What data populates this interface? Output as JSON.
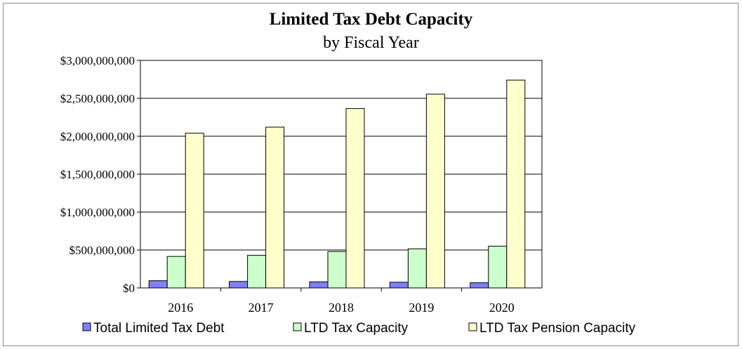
{
  "chart_data": {
    "type": "bar",
    "title": "Limited Tax Debt Capacity",
    "subtitle": "by Fiscal Year",
    "xlabel": "",
    "ylabel": "",
    "categories": [
      "2016",
      "2017",
      "2018",
      "2019",
      "2020"
    ],
    "ylim": [
      0,
      3000000000
    ],
    "yticks": [
      0,
      500000000,
      1000000000,
      1500000000,
      2000000000,
      2500000000,
      3000000000
    ],
    "ytick_labels": [
      "$0",
      "$500,000,000",
      "$1,000,000,000",
      "$1,500,000,000",
      "$2,000,000,000",
      "$2,500,000,000",
      "$3,000,000,000"
    ],
    "grid": true,
    "legend_position": "bottom",
    "series": [
      {
        "name": "Total Limited Tax Debt",
        "color": "#8080ff",
        "values": [
          95000000,
          85000000,
          80000000,
          75000000,
          68000000
        ]
      },
      {
        "name": "LTD Tax Capacity",
        "color": "#ccffcc",
        "values": [
          415000000,
          430000000,
          480000000,
          515000000,
          550000000
        ]
      },
      {
        "name": "LTD Tax Pension Capacity",
        "color": "#ffffcc",
        "values": [
          2040000000,
          2120000000,
          2365000000,
          2555000000,
          2740000000
        ]
      }
    ]
  }
}
